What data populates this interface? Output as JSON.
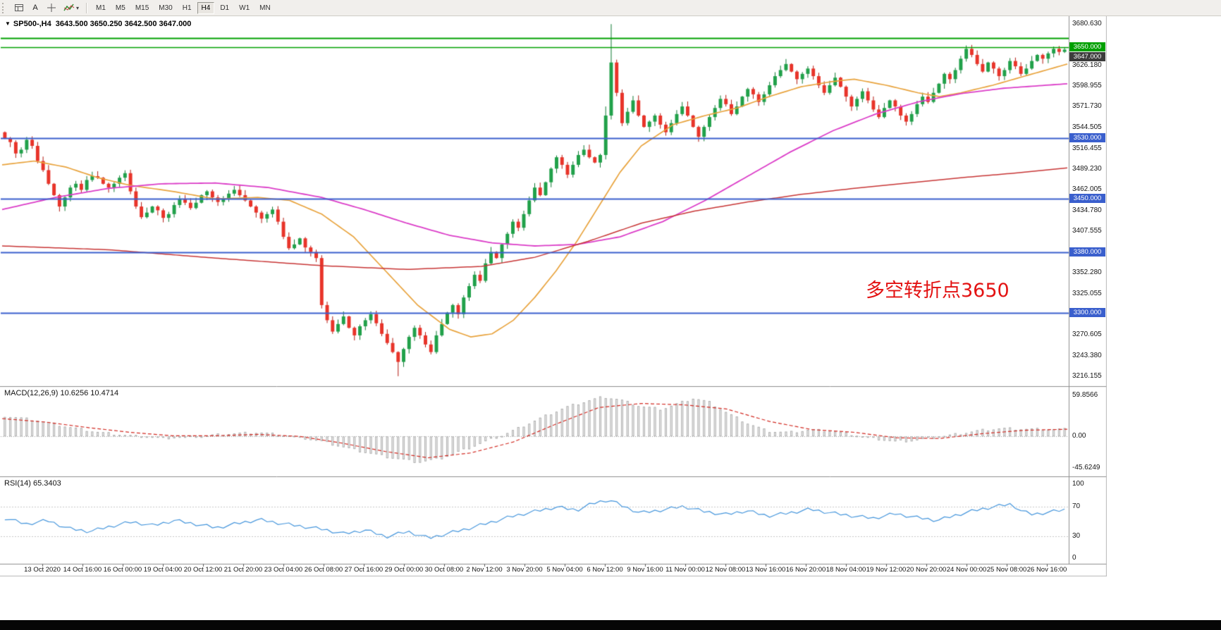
{
  "toolbar": {
    "text_tool_label": "A",
    "timeframes": [
      "M1",
      "M5",
      "M15",
      "M30",
      "H1",
      "H4",
      "D1",
      "W1",
      "MN"
    ],
    "active_timeframe": "H4"
  },
  "header": {
    "symbol": "SP500-,H4",
    "ohlc": "3643.500 3650.250 3642.500 3647.000"
  },
  "annotation": {
    "text": "多空转折点3650",
    "color": "#e31212"
  },
  "indicators": {
    "macd": {
      "label": "MACD(12,26,9)",
      "values": "10.6256 10.4714",
      "scale": [
        "59.8566",
        "0.00",
        "-45.6249"
      ],
      "scale_values": [
        59.8566,
        0,
        -45.6249
      ]
    },
    "rsi": {
      "label": "RSI(14)",
      "value": "65.3403",
      "scale": [
        "100",
        "70",
        "30",
        "0"
      ],
      "scale_values": [
        100,
        70,
        30,
        0
      ]
    }
  },
  "chart_data": {
    "type": "candlestick",
    "symbol": "SP500-",
    "timeframe": "H4",
    "title": "SP500- H4 with MACD(12,26,9) and RSI(14)",
    "price_range": [
      3203,
      3692
    ],
    "first_open": 3538,
    "closes": [
      3530,
      3525,
      3510,
      3515,
      3528,
      3520,
      3500,
      3488,
      3470,
      3455,
      3440,
      3452,
      3465,
      3470,
      3462,
      3475,
      3480,
      3478,
      3470,
      3465,
      3470,
      3478,
      3484,
      3460,
      3440,
      3426,
      3432,
      3440,
      3435,
      3425,
      3430,
      3442,
      3450,
      3445,
      3438,
      3445,
      3455,
      3460,
      3452,
      3446,
      3450,
      3457,
      3462,
      3455,
      3448,
      3440,
      3432,
      3424,
      3430,
      3436,
      3420,
      3400,
      3385,
      3390,
      3398,
      3386,
      3380,
      3372,
      3310,
      3290,
      3275,
      3285,
      3295,
      3280,
      3270,
      3282,
      3290,
      3298,
      3286,
      3272,
      3260,
      3248,
      3235,
      3252,
      3268,
      3280,
      3270,
      3258,
      3248,
      3270,
      3285,
      3300,
      3310,
      3298,
      3320,
      3335,
      3350,
      3342,
      3365,
      3380,
      3372,
      3390,
      3404,
      3420,
      3412,
      3430,
      3448,
      3465,
      3455,
      3472,
      3490,
      3505,
      3495,
      3482,
      3495,
      3508,
      3515,
      3505,
      3498,
      3508,
      3560,
      3630,
      3590,
      3550,
      3565,
      3580,
      3560,
      3545,
      3552,
      3560,
      3548,
      3538,
      3550,
      3562,
      3572,
      3560,
      3545,
      3532,
      3545,
      3558,
      3570,
      3582,
      3575,
      3562,
      3572,
      3585,
      3595,
      3588,
      3578,
      3588,
      3600,
      3612,
      3620,
      3628,
      3618,
      3608,
      3615,
      3622,
      3612,
      3600,
      3590,
      3600,
      3610,
      3598,
      3585,
      3572,
      3582,
      3592,
      3580,
      3568,
      3558,
      3570,
      3580,
      3572,
      3560,
      3552,
      3562,
      3575,
      3585,
      3578,
      3590,
      3602,
      3615,
      3608,
      3620,
      3635,
      3648,
      3640,
      3628,
      3618,
      3630,
      3622,
      3612,
      3620,
      3632,
      3625,
      3615,
      3622,
      3632,
      3640,
      3635,
      3642,
      3648,
      3644,
      3647
    ],
    "wick_overrides": {
      "72": {
        "low": 3216.155
      },
      "110": {
        "high": 3572
      },
      "111": {
        "high": 3680.63
      },
      "194": {
        "high": 3650.25,
        "low": 3642.5
      }
    },
    "candle_colors": {
      "up": "#21A14A",
      "up_border": "#0E7A32",
      "down": "#E8342A",
      "down_border": "#B3170F"
    },
    "horizontal_lines": [
      {
        "price": 3662.0,
        "color": "#00A000",
        "width": 2
      },
      {
        "price": 3650.5,
        "color": "#00A000",
        "width": 1.5
      },
      {
        "price": 3530.0,
        "color": "#3A5FCD",
        "width": 2
      },
      {
        "price": 3450.0,
        "color": "#3A5FCD",
        "width": 2
      },
      {
        "price": 3380.0,
        "color": "#3A5FCD",
        "width": 2
      },
      {
        "price": 3300.0,
        "color": "#3A5FCD",
        "width": 2
      }
    ],
    "price_ticks": [
      "3680.630",
      "3626.180",
      "3598.955",
      "3571.730",
      "3544.505",
      "3516.455",
      "3489.230",
      "3462.005",
      "3434.780",
      "3407.555",
      "3352.280",
      "3325.055",
      "3270.605",
      "3243.380",
      "3216.155"
    ],
    "price_badges": [
      {
        "label": "3650.000",
        "value": 3650.0,
        "bg": "#00A000"
      },
      {
        "label": "3647.000",
        "value": 3647.0,
        "bg": "#3C3C3C"
      },
      {
        "label": "3530.000",
        "value": 3530.0,
        "bg": "#3A5FCD"
      },
      {
        "label": "3450.000",
        "value": 3450.0,
        "bg": "#3A5FCD"
      },
      {
        "label": "3380.000",
        "value": 3380.0,
        "bg": "#3A5FCD"
      },
      {
        "label": "3300.000",
        "value": 3300.0,
        "bg": "#3A5FCD"
      }
    ],
    "time_labels": [
      "13 Oct 2020",
      "14 Oct 16:00",
      "16 Oct 00:00",
      "19 Oct 04:00",
      "20 Oct 12:00",
      "21 Oct 20:00",
      "23 Oct 04:00",
      "26 Oct 08:00",
      "27 Oct 16:00",
      "29 Oct 00:00",
      "30 Oct 08:00",
      "2 Nov 12:00",
      "3 Nov 20:00",
      "5 Nov 04:00",
      "6 Nov 12:00",
      "9 Nov 16:00",
      "11 Nov 00:00",
      "12 Nov 08:00",
      "13 Nov 16:00",
      "16 Nov 20:00",
      "18 Nov 04:00",
      "19 Nov 12:00",
      "20 Nov 20:00",
      "24 Nov 00:00",
      "25 Nov 08:00",
      "26 Nov 16:00"
    ],
    "moving_averages": [
      {
        "name": "ma-fast-orange",
        "color": "#E8A33D",
        "width": 1.7,
        "anchors": [
          [
            0,
            3495
          ],
          [
            0.03,
            3500
          ],
          [
            0.06,
            3492
          ],
          [
            0.09,
            3478
          ],
          [
            0.12,
            3468
          ],
          [
            0.16,
            3460
          ],
          [
            0.2,
            3450
          ],
          [
            0.24,
            3452
          ],
          [
            0.27,
            3448
          ],
          [
            0.3,
            3430
          ],
          [
            0.33,
            3400
          ],
          [
            0.36,
            3355
          ],
          [
            0.39,
            3310
          ],
          [
            0.42,
            3278
          ],
          [
            0.44,
            3268
          ],
          [
            0.46,
            3272
          ],
          [
            0.48,
            3290
          ],
          [
            0.5,
            3320
          ],
          [
            0.52,
            3355
          ],
          [
            0.54,
            3395
          ],
          [
            0.56,
            3440
          ],
          [
            0.58,
            3485
          ],
          [
            0.6,
            3520
          ],
          [
            0.63,
            3548
          ],
          [
            0.66,
            3560
          ],
          [
            0.69,
            3570
          ],
          [
            0.72,
            3585
          ],
          [
            0.75,
            3598
          ],
          [
            0.78,
            3605
          ],
          [
            0.8,
            3608
          ],
          [
            0.83,
            3600
          ],
          [
            0.86,
            3590
          ],
          [
            0.88,
            3585
          ],
          [
            0.9,
            3590
          ],
          [
            0.93,
            3600
          ],
          [
            0.96,
            3612
          ],
          [
            1,
            3628
          ]
        ]
      },
      {
        "name": "ma-mid-magenta",
        "color": "#DB3DC8",
        "width": 1.8,
        "anchors": [
          [
            0,
            3436
          ],
          [
            0.05,
            3452
          ],
          [
            0.1,
            3464
          ],
          [
            0.15,
            3470
          ],
          [
            0.2,
            3471
          ],
          [
            0.25,
            3465
          ],
          [
            0.3,
            3452
          ],
          [
            0.34,
            3436
          ],
          [
            0.38,
            3418
          ],
          [
            0.42,
            3402
          ],
          [
            0.46,
            3392
          ],
          [
            0.5,
            3388
          ],
          [
            0.54,
            3390
          ],
          [
            0.58,
            3400
          ],
          [
            0.62,
            3420
          ],
          [
            0.66,
            3448
          ],
          [
            0.7,
            3480
          ],
          [
            0.74,
            3512
          ],
          [
            0.78,
            3540
          ],
          [
            0.82,
            3562
          ],
          [
            0.86,
            3578
          ],
          [
            0.9,
            3589
          ],
          [
            0.94,
            3596
          ],
          [
            1,
            3602
          ]
        ]
      },
      {
        "name": "ma-slow-red",
        "color": "#C73535",
        "width": 1.5,
        "anchors": [
          [
            0,
            3388
          ],
          [
            0.1,
            3383
          ],
          [
            0.2,
            3372
          ],
          [
            0.3,
            3362
          ],
          [
            0.38,
            3357
          ],
          [
            0.45,
            3361
          ],
          [
            0.5,
            3373
          ],
          [
            0.55,
            3394
          ],
          [
            0.6,
            3418
          ],
          [
            0.65,
            3434
          ],
          [
            0.7,
            3446
          ],
          [
            0.75,
            3456
          ],
          [
            0.8,
            3464
          ],
          [
            0.85,
            3471
          ],
          [
            0.9,
            3478
          ],
          [
            0.95,
            3484
          ],
          [
            1,
            3491
          ]
        ]
      }
    ],
    "macd": {
      "range": [
        -52,
        66
      ],
      "histogram_color": "#e9e9e9",
      "histogram_border": "#a5a5a5",
      "signal_color": "#D22A22",
      "histogram_anchors": [
        [
          0,
          30
        ],
        [
          0.03,
          24
        ],
        [
          0.06,
          14
        ],
        [
          0.09,
          6
        ],
        [
          0.12,
          1
        ],
        [
          0.15,
          -3
        ],
        [
          0.18,
          0
        ],
        [
          0.21,
          4
        ],
        [
          0.24,
          6
        ],
        [
          0.27,
          1
        ],
        [
          0.3,
          -8
        ],
        [
          0.33,
          -20
        ],
        [
          0.36,
          -30
        ],
        [
          0.39,
          -38
        ],
        [
          0.41,
          -33
        ],
        [
          0.43,
          -22
        ],
        [
          0.45,
          -10
        ],
        [
          0.47,
          2
        ],
        [
          0.49,
          16
        ],
        [
          0.51,
          30
        ],
        [
          0.53,
          43
        ],
        [
          0.55,
          52
        ],
        [
          0.565,
          58
        ],
        [
          0.58,
          54
        ],
        [
          0.6,
          44
        ],
        [
          0.62,
          40
        ],
        [
          0.635,
          48
        ],
        [
          0.65,
          56
        ],
        [
          0.665,
          50
        ],
        [
          0.68,
          36
        ],
        [
          0.7,
          20
        ],
        [
          0.72,
          8
        ],
        [
          0.74,
          6
        ],
        [
          0.76,
          10
        ],
        [
          0.78,
          8
        ],
        [
          0.8,
          3
        ],
        [
          0.82,
          -3
        ],
        [
          0.84,
          -8
        ],
        [
          0.86,
          -6
        ],
        [
          0.88,
          -1
        ],
        [
          0.9,
          4
        ],
        [
          0.92,
          9
        ],
        [
          0.94,
          12
        ],
        [
          0.96,
          11
        ],
        [
          0.98,
          10.8
        ],
        [
          1,
          10.63
        ]
      ],
      "signal_anchors": [
        [
          0,
          26
        ],
        [
          0.04,
          21
        ],
        [
          0.08,
          13
        ],
        [
          0.12,
          6
        ],
        [
          0.16,
          1
        ],
        [
          0.2,
          1
        ],
        [
          0.24,
          3
        ],
        [
          0.28,
          0
        ],
        [
          0.32,
          -10
        ],
        [
          0.36,
          -22
        ],
        [
          0.4,
          -31
        ],
        [
          0.44,
          -24
        ],
        [
          0.48,
          -8
        ],
        [
          0.52,
          18
        ],
        [
          0.56,
          42
        ],
        [
          0.6,
          48
        ],
        [
          0.64,
          46
        ],
        [
          0.68,
          40
        ],
        [
          0.72,
          22
        ],
        [
          0.76,
          10
        ],
        [
          0.8,
          6
        ],
        [
          0.84,
          -2
        ],
        [
          0.88,
          -3
        ],
        [
          0.92,
          4
        ],
        [
          0.96,
          9
        ],
        [
          1,
          10.47
        ]
      ]
    },
    "rsi": {
      "range": [
        0,
        100
      ],
      "levels": [
        70,
        30
      ],
      "color": "#4696DC",
      "anchors": [
        [
          0,
          54
        ],
        [
          0.02,
          46
        ],
        [
          0.04,
          51
        ],
        [
          0.06,
          40
        ],
        [
          0.08,
          36
        ],
        [
          0.1,
          43
        ],
        [
          0.12,
          49
        ],
        [
          0.14,
          44
        ],
        [
          0.16,
          51
        ],
        [
          0.18,
          46
        ],
        [
          0.2,
          41
        ],
        [
          0.22,
          47
        ],
        [
          0.24,
          52
        ],
        [
          0.26,
          47
        ],
        [
          0.28,
          43
        ],
        [
          0.3,
          39
        ],
        [
          0.32,
          33
        ],
        [
          0.34,
          38
        ],
        [
          0.36,
          29
        ],
        [
          0.38,
          36
        ],
        [
          0.4,
          27
        ],
        [
          0.42,
          34
        ],
        [
          0.44,
          41
        ],
        [
          0.46,
          49
        ],
        [
          0.48,
          57
        ],
        [
          0.5,
          63
        ],
        [
          0.52,
          69
        ],
        [
          0.54,
          65
        ],
        [
          0.555,
          74
        ],
        [
          0.57,
          79
        ],
        [
          0.585,
          69
        ],
        [
          0.6,
          61
        ],
        [
          0.62,
          65
        ],
        [
          0.64,
          70
        ],
        [
          0.66,
          63
        ],
        [
          0.68,
          59
        ],
        [
          0.7,
          64
        ],
        [
          0.72,
          57
        ],
        [
          0.74,
          61
        ],
        [
          0.76,
          66
        ],
        [
          0.78,
          61
        ],
        [
          0.8,
          57
        ],
        [
          0.82,
          54
        ],
        [
          0.84,
          60
        ],
        [
          0.86,
          55
        ],
        [
          0.88,
          51
        ],
        [
          0.9,
          59
        ],
        [
          0.92,
          66
        ],
        [
          0.94,
          71
        ],
        [
          0.95,
          73
        ],
        [
          0.96,
          63
        ],
        [
          0.97,
          59
        ],
        [
          0.98,
          61
        ],
        [
          1,
          65.34
        ]
      ]
    }
  }
}
